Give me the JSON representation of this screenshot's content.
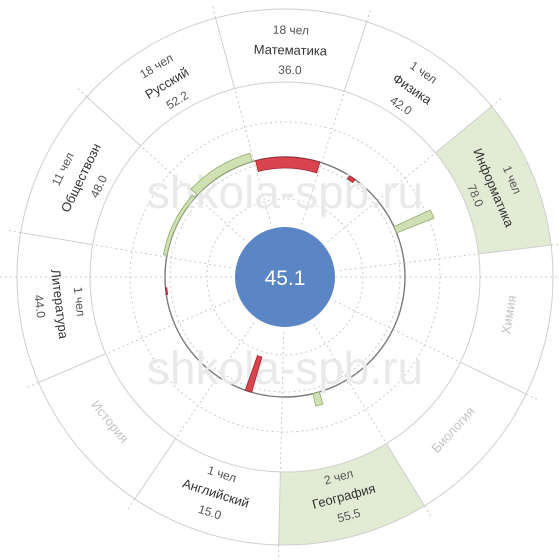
{
  "chart_data": {
    "type": "radial_bar",
    "center_value": "45.1",
    "baseline": 45.1,
    "watermark": "shkola-spb.ru",
    "colors": {
      "below_bar": "#d9454f",
      "below_bar_stroke": "#a1222c",
      "above_bar": "#cfe0b4",
      "above_bar_stroke": "#8fad6a",
      "highlight_sector": "#e2ebd3",
      "center_circle": "#5b86c5",
      "label_active": "#333333",
      "label_inactive": "#c4c4c4"
    },
    "sectors": [
      {
        "subject": "Математика",
        "count": "18 чел",
        "score": "36.0",
        "value": 36.0,
        "highlight": false,
        "active": true,
        "bar_width": "wide"
      },
      {
        "subject": "Физика",
        "count": "1 чел",
        "score": "42.0",
        "value": 42.0,
        "highlight": false,
        "active": true,
        "bar_width": "narrow"
      },
      {
        "subject": "Информатика",
        "count": "1 чел",
        "score": "78.0",
        "value": 78.0,
        "highlight": true,
        "active": true,
        "bar_width": "narrow"
      },
      {
        "subject": "Химия",
        "count": "",
        "score": "",
        "value": null,
        "highlight": false,
        "active": false,
        "bar_width": "none"
      },
      {
        "subject": "Биология",
        "count": "",
        "score": "",
        "value": null,
        "highlight": false,
        "active": false,
        "bar_width": "none"
      },
      {
        "subject": "География",
        "count": "2 чел",
        "score": "55.5",
        "value": 55.5,
        "highlight": true,
        "active": true,
        "bar_width": "narrow"
      },
      {
        "subject": "Английский",
        "count": "1 чел",
        "score": "15.0",
        "value": 15.0,
        "highlight": false,
        "active": true,
        "bar_width": "narrow"
      },
      {
        "subject": "История",
        "count": "",
        "score": "",
        "value": null,
        "highlight": false,
        "active": false,
        "bar_width": "none"
      },
      {
        "subject": "Литература",
        "count": "1 чел",
        "score": "44.0",
        "value": 44.0,
        "highlight": false,
        "active": true,
        "bar_width": "narrow"
      },
      {
        "subject": "Обществозн",
        "count": "11 чел",
        "score": "48.0",
        "value": 48.0,
        "highlight": false,
        "active": true,
        "bar_width": "wide"
      },
      {
        "subject": "Русский",
        "count": "18 чел",
        "score": "52.2",
        "value": 52.2,
        "highlight": false,
        "active": true,
        "bar_width": "wide"
      }
    ]
  }
}
